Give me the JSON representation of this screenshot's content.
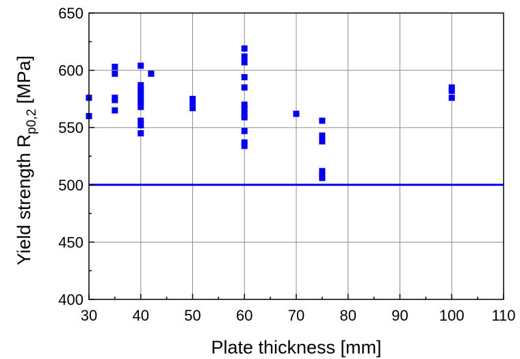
{
  "chart_data": {
    "type": "scatter",
    "xlabel": "Plate thickness [mm]",
    "ylabel_main": "Yield strength R",
    "ylabel_sub": "p0,2",
    "ylabel_unit": " [MPa]",
    "xlim": [
      30,
      110
    ],
    "ylim": [
      400,
      650
    ],
    "xticks": [
      30,
      40,
      50,
      60,
      70,
      80,
      90,
      100,
      110
    ],
    "yticks": [
      400,
      450,
      500,
      550,
      600,
      650
    ],
    "grid": true,
    "colors": {
      "points": "#0000ee",
      "reference_line": "#0000ee"
    },
    "reference_line": {
      "y": 500
    },
    "points": [
      {
        "x": 30,
        "y": 576
      },
      {
        "x": 30,
        "y": 560
      },
      {
        "x": 35,
        "y": 603
      },
      {
        "x": 35,
        "y": 597
      },
      {
        "x": 35,
        "y": 576
      },
      {
        "x": 35,
        "y": 574
      },
      {
        "x": 35,
        "y": 565
      },
      {
        "x": 40,
        "y": 604
      },
      {
        "x": 40,
        "y": 587
      },
      {
        "x": 40,
        "y": 583
      },
      {
        "x": 40,
        "y": 579
      },
      {
        "x": 40,
        "y": 576
      },
      {
        "x": 40,
        "y": 572
      },
      {
        "x": 40,
        "y": 568
      },
      {
        "x": 40,
        "y": 556
      },
      {
        "x": 40,
        "y": 552
      },
      {
        "x": 40,
        "y": 545
      },
      {
        "x": 42,
        "y": 597
      },
      {
        "x": 50,
        "y": 575
      },
      {
        "x": 50,
        "y": 571
      },
      {
        "x": 50,
        "y": 567
      },
      {
        "x": 60,
        "y": 619
      },
      {
        "x": 60,
        "y": 612
      },
      {
        "x": 60,
        "y": 607
      },
      {
        "x": 60,
        "y": 594
      },
      {
        "x": 60,
        "y": 585
      },
      {
        "x": 60,
        "y": 570
      },
      {
        "x": 60,
        "y": 566
      },
      {
        "x": 60,
        "y": 562
      },
      {
        "x": 60,
        "y": 559
      },
      {
        "x": 60,
        "y": 547
      },
      {
        "x": 60,
        "y": 537
      },
      {
        "x": 60,
        "y": 534
      },
      {
        "x": 70,
        "y": 562
      },
      {
        "x": 75,
        "y": 556
      },
      {
        "x": 75,
        "y": 543
      },
      {
        "x": 75,
        "y": 538
      },
      {
        "x": 75,
        "y": 512
      },
      {
        "x": 75,
        "y": 509
      },
      {
        "x": 75,
        "y": 506
      },
      {
        "x": 100,
        "y": 585
      },
      {
        "x": 100,
        "y": 582
      },
      {
        "x": 100,
        "y": 576
      }
    ]
  }
}
